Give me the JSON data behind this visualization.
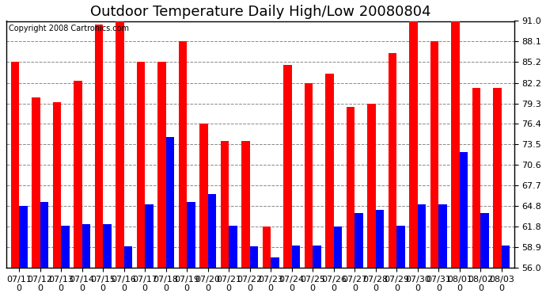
{
  "title": "Outdoor Temperature Daily High/Low 20080804",
  "copyright": "Copyright 2008 Cartronics.com",
  "dates": [
    "07/11",
    "07/12",
    "07/13",
    "07/14",
    "07/15",
    "07/16",
    "07/17",
    "07/18",
    "07/19",
    "07/20",
    "07/21",
    "07/22",
    "07/23",
    "07/24",
    "07/25",
    "07/26",
    "07/27",
    "07/28",
    "07/29",
    "07/30",
    "07/31",
    "08/01",
    "08/02",
    "08/03"
  ],
  "highs": [
    85.2,
    80.2,
    79.5,
    82.5,
    90.5,
    91.5,
    85.2,
    85.2,
    88.1,
    76.4,
    74.0,
    74.0,
    61.8,
    84.8,
    82.2,
    83.5,
    78.8,
    79.3,
    86.4,
    91.0,
    88.1,
    91.0,
    81.5,
    81.5
  ],
  "lows": [
    64.8,
    65.3,
    62.0,
    62.2,
    62.2,
    59.0,
    65.0,
    74.5,
    65.3,
    66.5,
    62.0,
    59.0,
    57.5,
    59.2,
    59.2,
    61.8,
    63.8,
    64.2,
    62.0,
    65.0,
    65.0,
    72.4,
    63.8,
    59.2
  ],
  "high_color": "#ff0000",
  "low_color": "#0000ff",
  "background_color": "#ffffff",
  "grid_color": "#888888",
  "ymin": 56.0,
  "ymax": 91.0,
  "yticks": [
    56.0,
    58.9,
    61.8,
    64.8,
    67.7,
    70.6,
    73.5,
    76.4,
    79.3,
    82.2,
    85.2,
    88.1,
    91.0
  ],
  "bar_width": 0.4,
  "title_fontsize": 13,
  "tick_fontsize": 8,
  "copyright_fontsize": 7
}
